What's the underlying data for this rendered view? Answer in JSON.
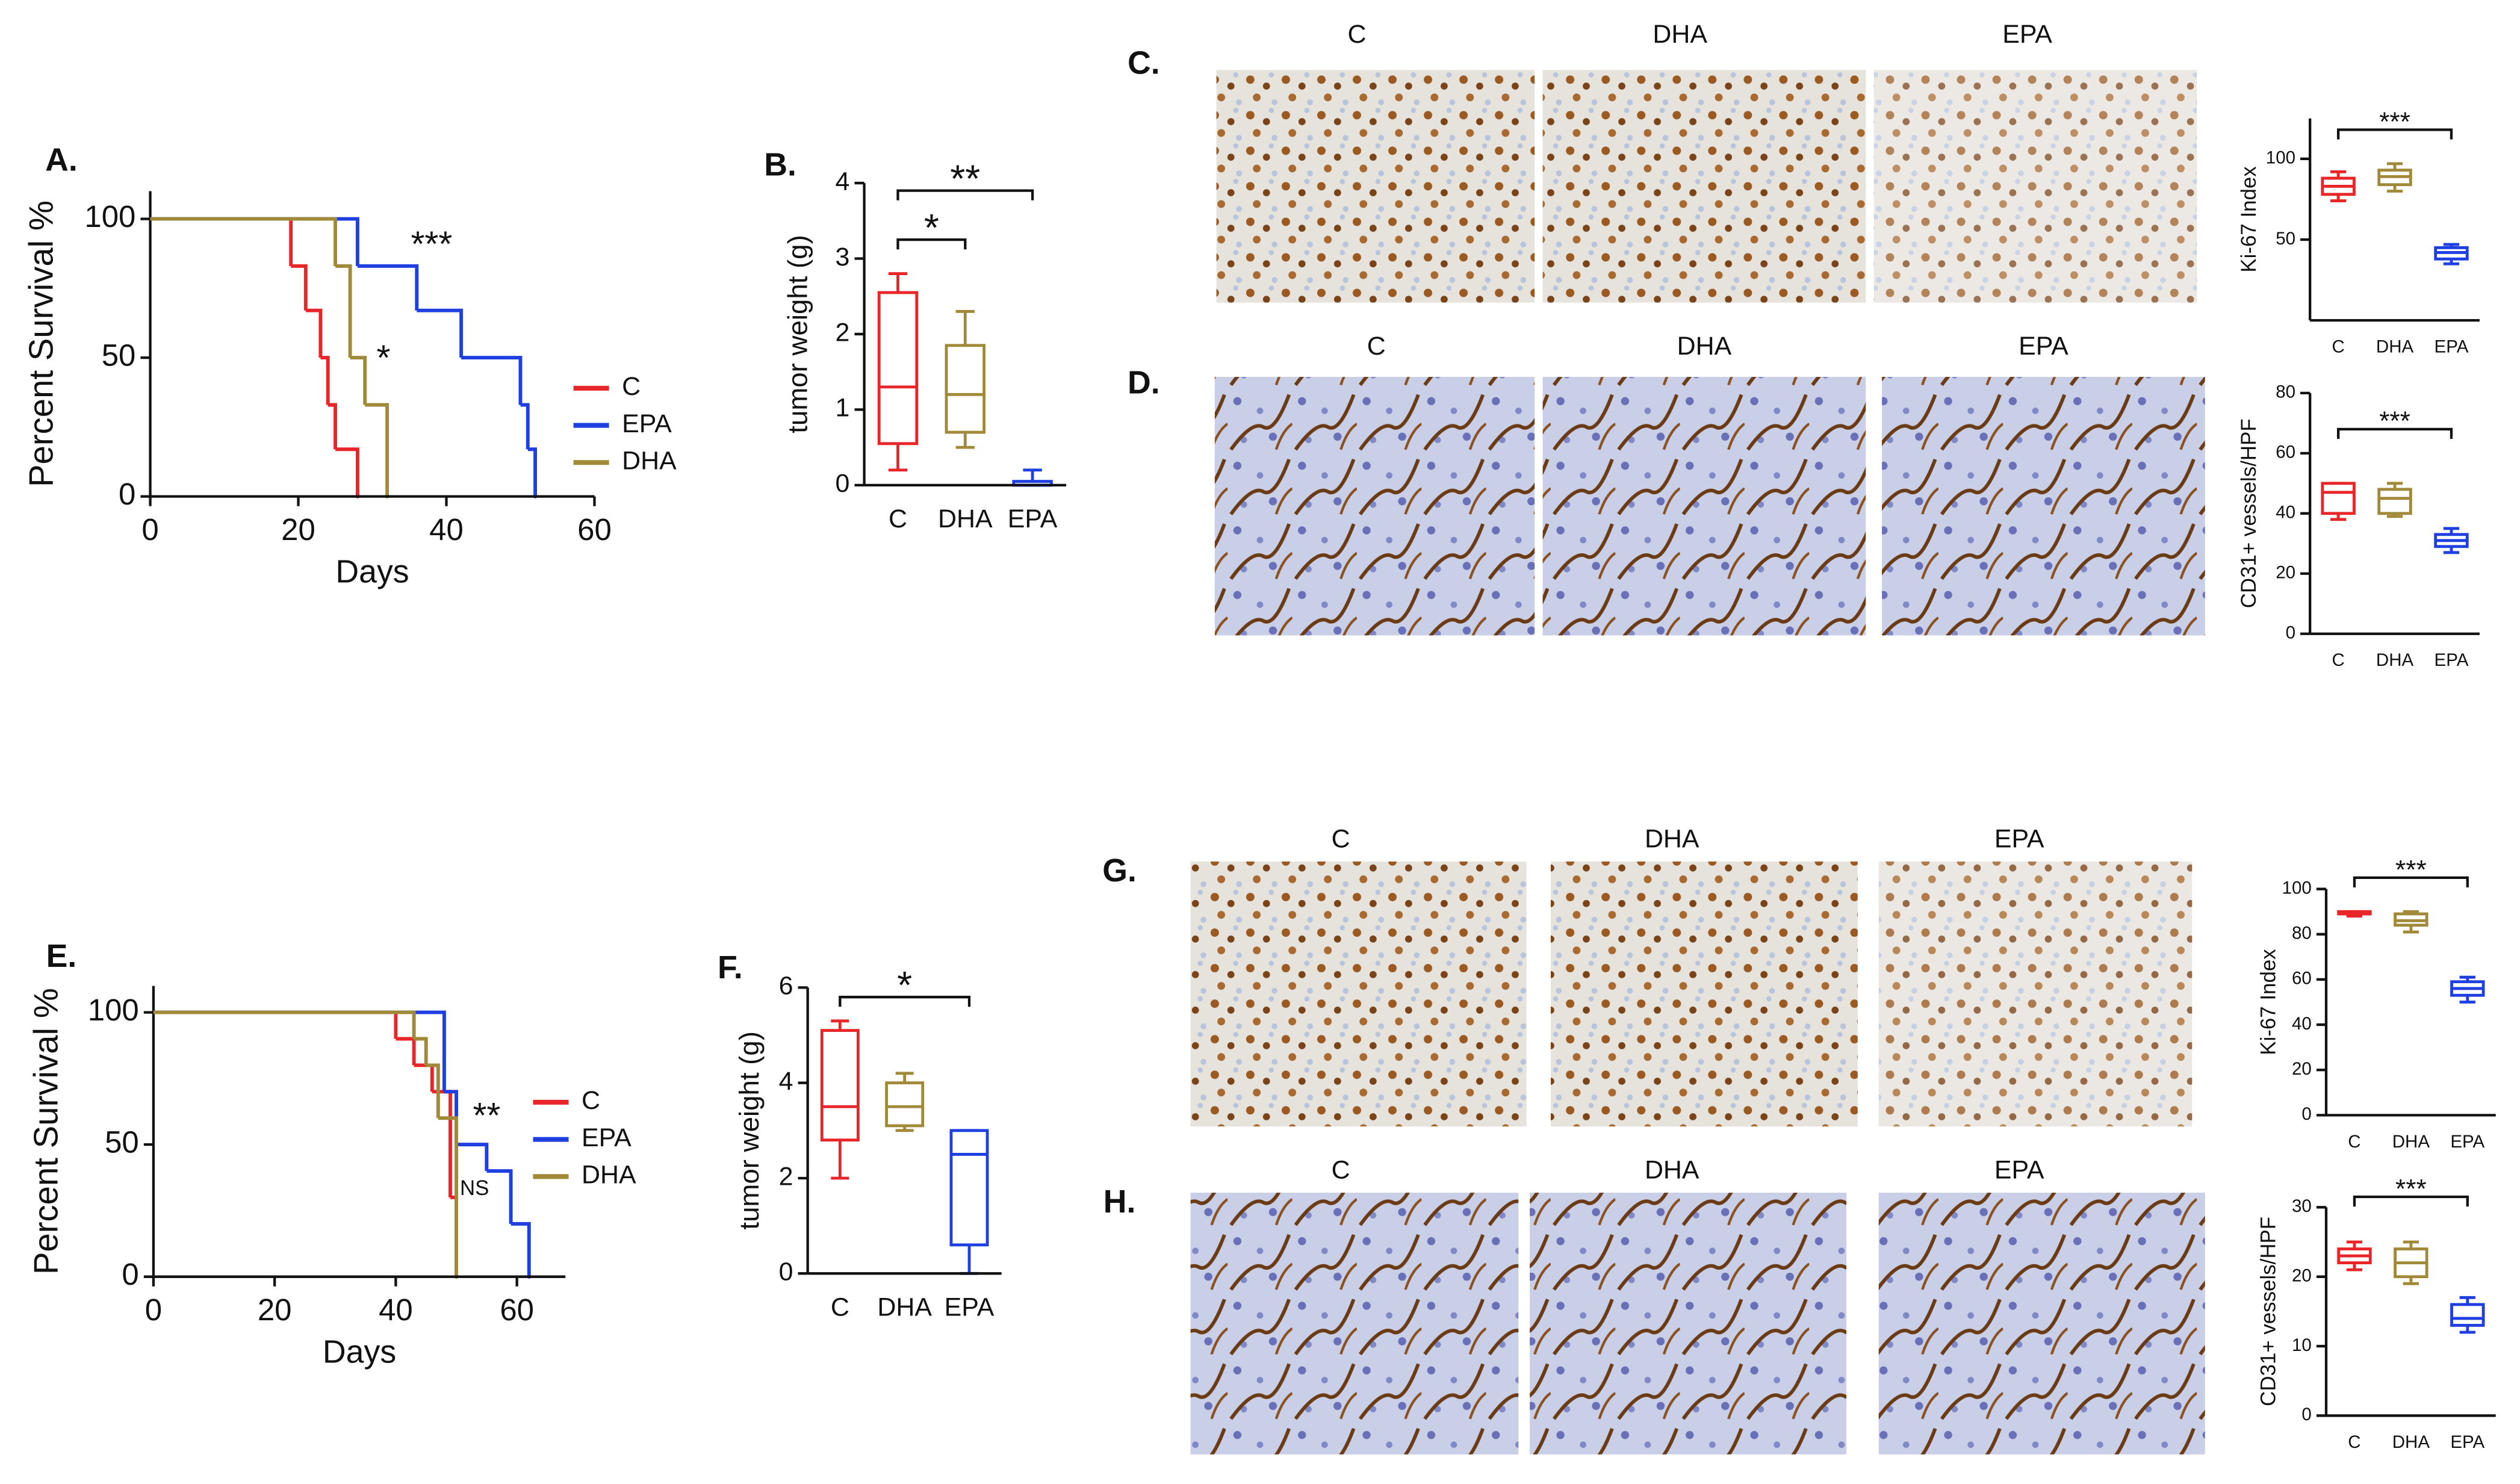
{
  "chart_data": [
    {
      "type": "step",
      "panel": "A.",
      "x_label": "Days",
      "y_label": "Percent Survival %",
      "xlim": [
        0,
        60
      ],
      "ylim": [
        0,
        110
      ],
      "xticks": [
        0,
        20,
        40,
        60
      ],
      "yticks": [
        0,
        50,
        100
      ],
      "legend": "right",
      "series": [
        {
          "name": "C",
          "color": "#e8262a",
          "x": [
            0,
            19,
            21,
            23,
            24,
            25,
            28
          ],
          "values": [
            100,
            83,
            67,
            50,
            33,
            17,
            0
          ]
        },
        {
          "name": "EPA",
          "color": "#1f3fe0",
          "x": [
            0,
            28,
            36,
            42,
            50,
            51,
            52
          ],
          "values": [
            100,
            83,
            67,
            50,
            33,
            17,
            0
          ]
        },
        {
          "name": "DHA",
          "color": "#a08a3a",
          "x": [
            0,
            25,
            27,
            29,
            32
          ],
          "values": [
            100,
            83,
            50,
            33,
            0
          ]
        }
      ],
      "annotations": [
        {
          "text": "***",
          "x": 38,
          "y": 90
        },
        {
          "text": "*",
          "x": 31.5,
          "y": 49
        }
      ]
    },
    {
      "type": "box",
      "panel": "B.",
      "y_label": "tumor weight (g)",
      "ylim": [
        0,
        4
      ],
      "yticks": [
        0,
        1,
        2,
        3,
        4
      ],
      "categories": [
        "C",
        "DHA",
        "EPA"
      ],
      "colors": [
        "#e8262a",
        "#a08a3a",
        "#1f3fe0"
      ],
      "boxes": [
        {
          "min": 0.2,
          "q1": 0.55,
          "median": 1.3,
          "q3": 2.55,
          "max": 2.8
        },
        {
          "min": 0.5,
          "q1": 0.7,
          "median": 1.2,
          "q3": 1.85,
          "max": 2.3
        },
        {
          "min": 0,
          "q1": 0,
          "median": 0,
          "q3": 0.05,
          "max": 0.2
        }
      ],
      "annotations": [
        {
          "text": "*",
          "from": "C",
          "to": "DHA",
          "y": 3.25
        },
        {
          "text": "**",
          "from": "C",
          "to": "EPA",
          "y": 3.9
        }
      ]
    },
    {
      "type": "box",
      "y_label": "Ki-67 Index",
      "ylim": [
        0,
        125
      ],
      "yticks": [
        50,
        100
      ],
      "categories": [
        "C",
        "DHA",
        "EPA"
      ],
      "colors": [
        "#e8262a",
        "#a08a3a",
        "#1f3fe0"
      ],
      "boxes": [
        {
          "min": 74,
          "q1": 78,
          "median": 83,
          "q3": 88,
          "max": 92
        },
        {
          "min": 80,
          "q1": 84,
          "median": 89,
          "q3": 93,
          "max": 97
        },
        {
          "min": 35,
          "q1": 38,
          "median": 42,
          "q3": 45,
          "max": 47
        }
      ],
      "annotations": [
        {
          "text": "***",
          "from": "C",
          "to": "EPA",
          "y": 118
        }
      ]
    },
    {
      "type": "box",
      "y_label": "CD31+ vessels/HPF",
      "ylim": [
        0,
        80
      ],
      "yticks": [
        0,
        20,
        40,
        60,
        80
      ],
      "categories": [
        "C",
        "DHA",
        "EPA"
      ],
      "colors": [
        "#e8262a",
        "#a08a3a",
        "#1f3fe0"
      ],
      "boxes": [
        {
          "min": 38,
          "q1": 40,
          "median": 47,
          "q3": 50,
          "max": 50
        },
        {
          "min": 39,
          "q1": 40,
          "median": 45,
          "q3": 48,
          "max": 50
        },
        {
          "min": 27,
          "q1": 29,
          "median": 31,
          "q3": 33,
          "max": 35
        }
      ],
      "annotations": [
        {
          "text": "***",
          "from": "C",
          "to": "EPA",
          "y": 68
        }
      ]
    },
    {
      "type": "step",
      "panel": "E.",
      "x_label": "Days",
      "y_label": "Percent Survival %",
      "xlim": [
        0,
        68
      ],
      "ylim": [
        0,
        110
      ],
      "xticks": [
        0,
        20,
        40,
        60
      ],
      "yticks": [
        0,
        50,
        100
      ],
      "legend": "right",
      "series": [
        {
          "name": "C",
          "color": "#e8262a",
          "x": [
            0,
            40,
            43,
            46,
            49,
            50
          ],
          "values": [
            100,
            90,
            80,
            70,
            30,
            0
          ]
        },
        {
          "name": "EPA",
          "color": "#1f3fe0",
          "x": [
            0,
            48,
            50,
            55,
            59,
            62
          ],
          "values": [
            100,
            70,
            50,
            40,
            20,
            0
          ]
        },
        {
          "name": "DHA",
          "color": "#a08a3a",
          "x": [
            0,
            43,
            45,
            47,
            50
          ],
          "values": [
            100,
            90,
            80,
            60,
            0
          ]
        }
      ],
      "annotations": [
        {
          "text": "**",
          "x": 55,
          "y": 60
        },
        {
          "text": "NS",
          "x": 53,
          "y": 33
        }
      ]
    },
    {
      "type": "box",
      "panel": "F.",
      "y_label": "tumor weight (g)",
      "ylim": [
        0,
        6
      ],
      "yticks": [
        0,
        2,
        4,
        6
      ],
      "categories": [
        "C",
        "DHA",
        "EPA"
      ],
      "colors": [
        "#e8262a",
        "#a08a3a",
        "#1f3fe0"
      ],
      "boxes": [
        {
          "min": 2.0,
          "q1": 2.8,
          "median": 3.5,
          "q3": 5.1,
          "max": 5.3
        },
        {
          "min": 3.0,
          "q1": 3.1,
          "median": 3.5,
          "q3": 4.0,
          "max": 4.2
        },
        {
          "min": 0,
          "q1": 0.6,
          "median": 2.5,
          "q3": 3.0,
          "max": 3.0
        }
      ],
      "annotations": [
        {
          "text": "*",
          "from": "C",
          "to": "EPA",
          "y": 5.8
        }
      ]
    },
    {
      "type": "box",
      "y_label": "Ki-67 Index",
      "ylim": [
        0,
        100
      ],
      "yticks": [
        0,
        20,
        40,
        60,
        80,
        100
      ],
      "categories": [
        "C",
        "DHA",
        "EPA"
      ],
      "colors": [
        "#e8262a",
        "#a08a3a",
        "#1f3fe0"
      ],
      "boxes": [
        {
          "min": 88,
          "q1": 89,
          "median": 89,
          "q3": 90,
          "max": 90
        },
        {
          "min": 81,
          "q1": 84,
          "median": 86,
          "q3": 89,
          "max": 90
        },
        {
          "min": 50,
          "q1": 53,
          "median": 56,
          "q3": 59,
          "max": 61
        }
      ],
      "annotations": [
        {
          "text": "***",
          "from": "C",
          "to": "EPA",
          "y": 105
        }
      ]
    },
    {
      "type": "box",
      "y_label": "CD31+ vessels/HPF",
      "ylim": [
        0,
        30
      ],
      "yticks": [
        0,
        10,
        20,
        30
      ],
      "categories": [
        "C",
        "DHA",
        "EPA"
      ],
      "colors": [
        "#e8262a",
        "#a08a3a",
        "#1f3fe0"
      ],
      "boxes": [
        {
          "min": 21,
          "q1": 22,
          "median": 23,
          "q3": 24,
          "max": 25
        },
        {
          "min": 19,
          "q1": 20,
          "median": 22,
          "q3": 24,
          "max": 25
        },
        {
          "min": 12,
          "q1": 13,
          "median": 14,
          "q3": 16,
          "max": 17
        }
      ],
      "annotations": [
        {
          "text": "***",
          "from": "C",
          "to": "EPA",
          "y": 31.5
        }
      ]
    }
  ],
  "image_panels": [
    {
      "label": "C.",
      "columns": [
        "C",
        "DHA",
        "EPA"
      ]
    },
    {
      "label": "D.",
      "columns": [
        "C",
        "DHA",
        "EPA"
      ]
    },
    {
      "label": "G.",
      "columns": [
        "C",
        "DHA",
        "EPA"
      ]
    },
    {
      "label": "H.",
      "columns": [
        "C",
        "DHA",
        "EPA"
      ]
    }
  ]
}
